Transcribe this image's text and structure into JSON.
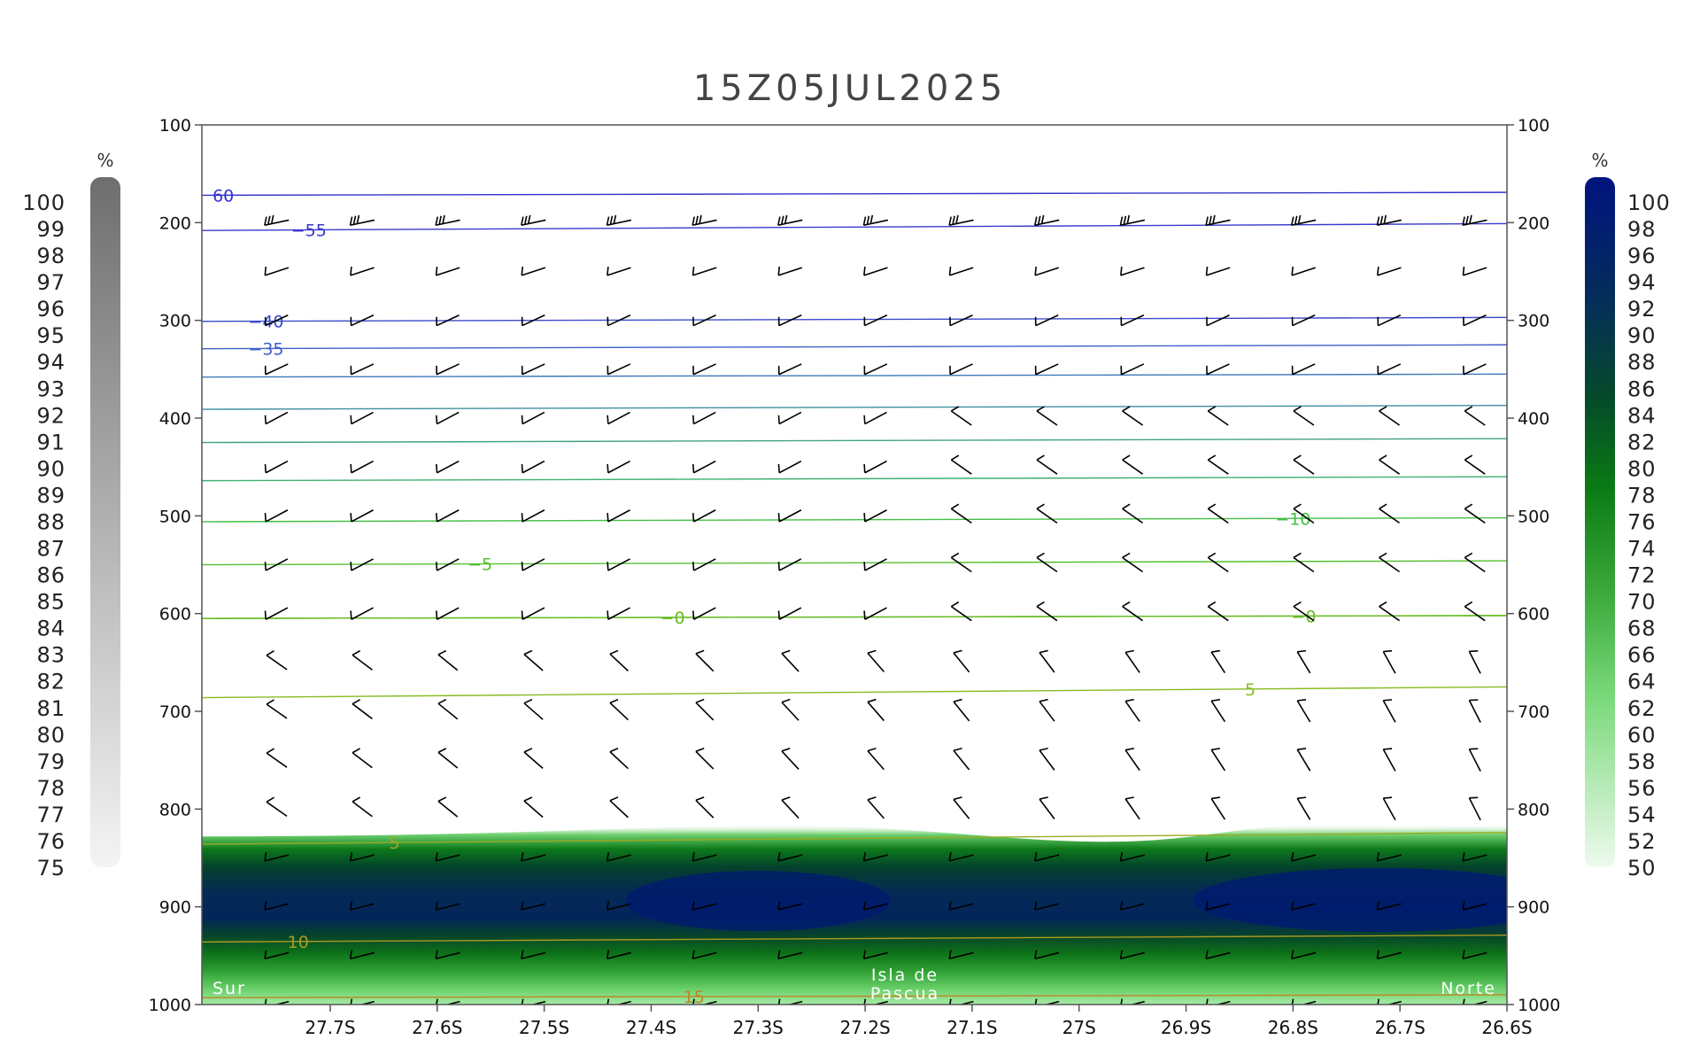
{
  "chart_data": {
    "type": "heatmap",
    "title": "15Z05JUL2025",
    "x_ticks": [
      "27.7S",
      "27.6S",
      "27.5S",
      "27.4S",
      "27.3S",
      "27.2S",
      "27.1S",
      "27S",
      "26.9S",
      "26.8S",
      "26.7S",
      "26.6S"
    ],
    "y_ticks": [
      100,
      200,
      300,
      400,
      500,
      600,
      700,
      800,
      900,
      1000
    ],
    "xlim": [
      27.82,
      26.6
    ],
    "ylim": [
      1000,
      100
    ],
    "annotations": {
      "left": "Sur",
      "center_line1": "Isla de",
      "center_line2": "Pascua",
      "right": "Norte"
    },
    "left_colorbar": {
      "unit": "%",
      "labels": [
        "100",
        "99",
        "98",
        "97",
        "96",
        "95",
        "94",
        "93",
        "92",
        "91",
        "90",
        "89",
        "88",
        "87",
        "86",
        "85",
        "84",
        "83",
        "82",
        "81",
        "80",
        "79",
        "78",
        "77",
        "76",
        "75"
      ]
    },
    "right_colorbar": {
      "unit": "%",
      "labels": [
        "100",
        "98",
        "96",
        "94",
        "92",
        "90",
        "88",
        "86",
        "84",
        "82",
        "80",
        "78",
        "76",
        "74",
        "72",
        "70",
        "68",
        "66",
        "64",
        "62",
        "60",
        "58",
        "56",
        "54",
        "52",
        "50"
      ]
    },
    "temperature_contours": [
      {
        "label": "60",
        "display_label": "60",
        "p_left": 172,
        "p_right": 169,
        "color": "#3333cc",
        "label_at": 27.8
      },
      {
        "label": "-55",
        "display_label": "−55",
        "p_left": 208,
        "p_right": 201,
        "color": "#3a3acc",
        "label_at": 27.72
      },
      {
        "label": "-40",
        "display_label": "−40",
        "p_left": 301,
        "p_right": 297,
        "color": "#3a4acc",
        "label_at": 27.76
      },
      {
        "label": "-35",
        "display_label": "−35",
        "p_left": 329,
        "p_right": 325,
        "color": "#3f5fc8",
        "label_at": 27.76
      },
      {
        "label": "",
        "display_label": "",
        "p_left": 358,
        "p_right": 355,
        "color": "#3f78b8",
        "label_at": null
      },
      {
        "label": "",
        "display_label": "",
        "p_left": 391,
        "p_right": 387,
        "color": "#3f8fa0",
        "label_at": null
      },
      {
        "label": "",
        "display_label": "",
        "p_left": 425,
        "p_right": 421,
        "color": "#40a088",
        "label_at": null
      },
      {
        "label": "",
        "display_label": "",
        "p_left": 464,
        "p_right": 460,
        "color": "#3fb070",
        "label_at": null
      },
      {
        "label": "-10",
        "display_label": "−10",
        "p_left": 506,
        "p_right": 502,
        "color": "#44c044",
        "label_at": 26.8
      },
      {
        "label": "-5",
        "display_label": "−5",
        "p_left": 550,
        "p_right": 546,
        "color": "#55c030",
        "label_at": 27.56
      },
      {
        "label": "-0",
        "display_label": "−0",
        "p_left": 605,
        "p_right": 602,
        "color": "#66bb22",
        "label_at": 27.38
      },
      {
        "label": "-0",
        "display_label": "−0",
        "p_left": 605,
        "p_right": 602,
        "color": "#66bb22",
        "label_at": 26.79
      },
      {
        "label": "5",
        "display_label": "5",
        "p_left": 686,
        "p_right": 675,
        "color": "#88bb22",
        "label_at": 26.84
      },
      {
        "label": "5",
        "display_label": "5",
        "p_left": 836,
        "p_right": 824,
        "color": "#99aa22",
        "label_at": 27.64
      },
      {
        "label": "10",
        "display_label": "10",
        "p_left": 936,
        "p_right": 929,
        "color": "#aa9922",
        "label_at": 27.73
      },
      {
        "label": "15",
        "display_label": "15",
        "p_left": 993,
        "p_right": 990,
        "color": "#bb8822",
        "label_at": 27.36
      }
    ],
    "wind_levels": [
      200,
      250,
      300,
      350,
      400,
      450,
      500,
      550,
      600,
      650,
      700,
      750,
      800,
      850,
      900,
      950,
      1000
    ],
    "wind_columns": [
      27.75,
      27.67,
      27.59,
      27.51,
      27.43,
      27.35,
      27.27,
      27.19,
      27.11,
      27.03,
      26.95,
      26.87,
      26.79,
      26.71,
      26.63
    ],
    "humidity_layer": {
      "top_p_left": 828,
      "top_p_right": 815,
      "moist_center_p": 895,
      "description_values": {
        "max_percent": 100,
        "min_percent": 50
      }
    }
  }
}
